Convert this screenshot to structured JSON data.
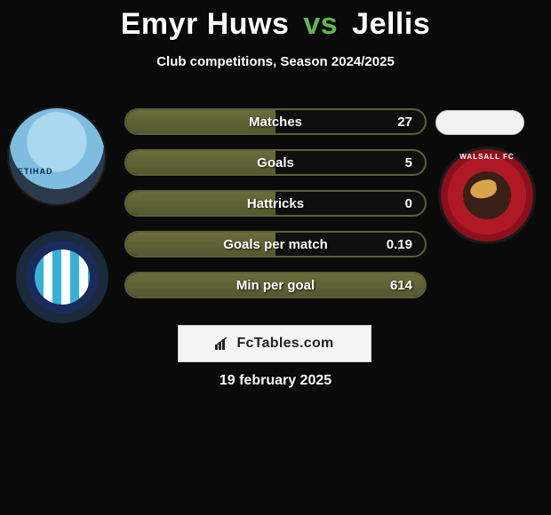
{
  "title": {
    "player1": "Emyr Huws",
    "vs": "vs",
    "player2": "Jellis"
  },
  "subtitle": "Club competitions, Season 2024/2025",
  "accent_color": "#5d5f37",
  "fill_color_top": "#6b6d3c",
  "fill_color_bottom": "#555730",
  "background_color": "#0a0a0a",
  "text_color": "#ffffff",
  "vs_color": "#5fb84f",
  "stats": [
    {
      "label": "Matches",
      "value": "27",
      "fill_pct": 50
    },
    {
      "label": "Goals",
      "value": "5",
      "fill_pct": 50
    },
    {
      "label": "Hattricks",
      "value": "0",
      "fill_pct": 50
    },
    {
      "label": "Goals per match",
      "value": "0.19",
      "fill_pct": 50
    },
    {
      "label": "Min per goal",
      "value": "614",
      "fill_pct": 100
    }
  ],
  "left_avatar": {
    "name": "player1-photo",
    "shape": "circle",
    "bg": "#7fbde0"
  },
  "left_badge": {
    "name": "colchester-badge",
    "shape": "circle",
    "stripes": [
      "#36b0d6",
      "#ffffff"
    ],
    "ring": "#1a2a5a"
  },
  "right_pill": {
    "name": "player2-placeholder",
    "bg": "#f2f2f2"
  },
  "right_badge": {
    "name": "walsall-badge",
    "bg": "#b01826",
    "text": "WALSALL FC"
  },
  "brand": {
    "label": "FcTables.com",
    "icon": "bar-chart-icon"
  },
  "date": "19 february 2025"
}
